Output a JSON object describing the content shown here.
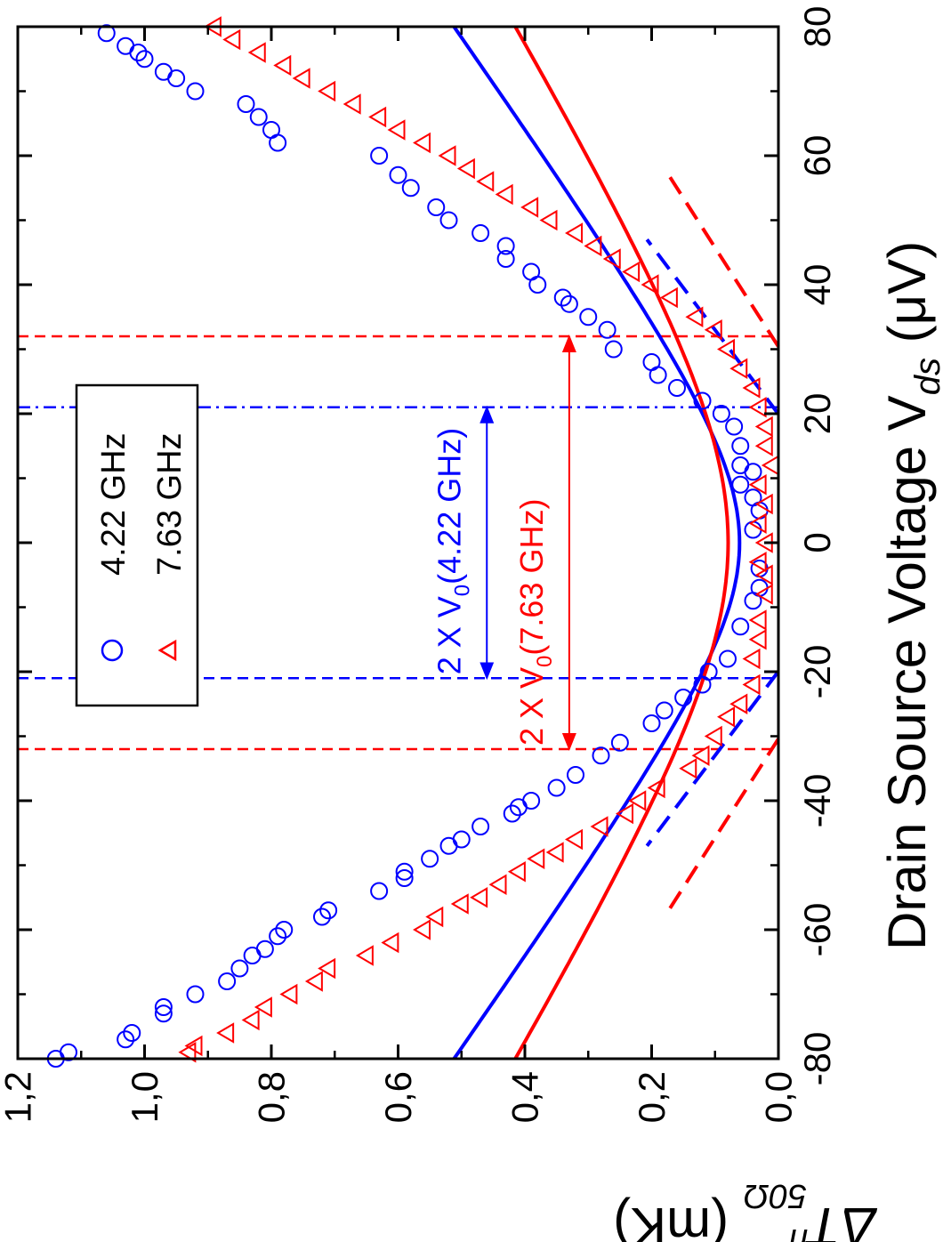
{
  "chart_data": {
    "type": "scatter",
    "orientation": "rotated-90-clockwise",
    "xlabel": {
      "prefix": "Drain Source Voltage V",
      "subscript": "ds",
      "suffix": " (μV)"
    },
    "ylabel": {
      "prefix": "ΔT",
      "superscript": "n",
      "subscript": "50Ω",
      "suffix": " (mK)"
    },
    "xlim": [
      -80,
      80
    ],
    "ylim": [
      0.0,
      1.2
    ],
    "xticks": [
      "-80",
      "-60",
      "-40",
      "-20",
      "0",
      "20",
      "40",
      "60",
      "80"
    ],
    "yticks": [
      "0,0",
      "0,2",
      "0,4",
      "0,6",
      "0,8",
      "1,0",
      "1,2"
    ],
    "grid": false,
    "legend": {
      "placement": "top-left",
      "entries": [
        {
          "label": "4.22 GHz",
          "marker": "circle",
          "color": "#0000ff"
        },
        {
          "label": "7.63 GHz",
          "marker": "triangle",
          "color": "#ff0000"
        }
      ]
    },
    "series": [
      {
        "name": "4.22 GHz",
        "color": "#0000ff",
        "marker": "circle",
        "V0": 21,
        "slope": 0.0073,
        "points": [
          [
            -80,
            1.14
          ],
          [
            -79,
            1.12
          ],
          [
            -77,
            1.03
          ],
          [
            -76,
            1.02
          ],
          [
            -73,
            0.97
          ],
          [
            -72,
            0.97
          ],
          [
            -70,
            0.92
          ],
          [
            -68,
            0.87
          ],
          [
            -66,
            0.85
          ],
          [
            -64,
            0.83
          ],
          [
            -63,
            0.81
          ],
          [
            -61,
            0.79
          ],
          [
            -60,
            0.78
          ],
          [
            -58,
            0.72
          ],
          [
            -57,
            0.71
          ],
          [
            -54,
            0.63
          ],
          [
            -52,
            0.59
          ],
          [
            -51,
            0.59
          ],
          [
            -49,
            0.55
          ],
          [
            -47,
            0.52
          ],
          [
            -46,
            0.5
          ],
          [
            -44,
            0.47
          ],
          [
            -42,
            0.42
          ],
          [
            -41,
            0.41
          ],
          [
            -40,
            0.39
          ],
          [
            -38,
            0.35
          ],
          [
            -36,
            0.32
          ],
          [
            -33,
            0.28
          ],
          [
            -31,
            0.25
          ],
          [
            -28,
            0.2
          ],
          [
            -26,
            0.18
          ],
          [
            -24,
            0.15
          ],
          [
            -22,
            0.12
          ],
          [
            -20,
            0.11
          ],
          [
            -18,
            0.08
          ],
          [
            -13,
            0.06
          ],
          [
            -9,
            0.04
          ],
          [
            -7,
            0.03
          ],
          [
            -4,
            0.03
          ],
          [
            2,
            0.04
          ],
          [
            5,
            0.03
          ],
          [
            7,
            0.04
          ],
          [
            9,
            0.06
          ],
          [
            11,
            0.04
          ],
          [
            12,
            0.06
          ],
          [
            15,
            0.06
          ],
          [
            18,
            0.07
          ],
          [
            20,
            0.09
          ],
          [
            22,
            0.12
          ],
          [
            24,
            0.16
          ],
          [
            26,
            0.19
          ],
          [
            28,
            0.2
          ],
          [
            30,
            0.26
          ],
          [
            33,
            0.27
          ],
          [
            35,
            0.3
          ],
          [
            37,
            0.33
          ],
          [
            38,
            0.34
          ],
          [
            40,
            0.38
          ],
          [
            42,
            0.39
          ],
          [
            44,
            0.43
          ],
          [
            46,
            0.43
          ],
          [
            48,
            0.47
          ],
          [
            50,
            0.52
          ],
          [
            52,
            0.54
          ],
          [
            55,
            0.58
          ],
          [
            57,
            0.6
          ],
          [
            60,
            0.63
          ],
          [
            62,
            0.79
          ],
          [
            64,
            0.8
          ],
          [
            66,
            0.82
          ],
          [
            68,
            0.84
          ],
          [
            70,
            0.92
          ],
          [
            72,
            0.95
          ],
          [
            73,
            0.97
          ],
          [
            75,
            1.0
          ],
          [
            76,
            1.01
          ],
          [
            77,
            1.03
          ],
          [
            79,
            1.06
          ]
        ]
      },
      {
        "name": "7.63 GHz",
        "color": "#ff0000",
        "marker": "triangle",
        "V0": 32,
        "slope": 0.0062,
        "points": [
          [
            -79,
            0.93
          ],
          [
            -78,
            0.92
          ],
          [
            -76,
            0.87
          ],
          [
            -74,
            0.83
          ],
          [
            -72,
            0.81
          ],
          [
            -70,
            0.77
          ],
          [
            -68,
            0.73
          ],
          [
            -66,
            0.71
          ],
          [
            -64,
            0.65
          ],
          [
            -62,
            0.61
          ],
          [
            -60,
            0.56
          ],
          [
            -58,
            0.54
          ],
          [
            -56,
            0.5
          ],
          [
            -55,
            0.47
          ],
          [
            -53,
            0.44
          ],
          [
            -51,
            0.41
          ],
          [
            -49,
            0.38
          ],
          [
            -48,
            0.35
          ],
          [
            -46,
            0.32
          ],
          [
            -44,
            0.28
          ],
          [
            -42,
            0.24
          ],
          [
            -40,
            0.22
          ],
          [
            -38,
            0.19
          ],
          [
            -35,
            0.14
          ],
          [
            -33,
            0.12
          ],
          [
            -30,
            0.1
          ],
          [
            -27,
            0.08
          ],
          [
            -25,
            0.06
          ],
          [
            -22,
            0.04
          ],
          [
            -18,
            0.04
          ],
          [
            -15,
            0.03
          ],
          [
            -12,
            0.03
          ],
          [
            -8,
            0.02
          ],
          [
            -5,
            0.02
          ],
          [
            -3,
            0.03
          ],
          [
            0,
            0.02
          ],
          [
            3,
            0.03
          ],
          [
            6,
            0.02
          ],
          [
            9,
            0.03
          ],
          [
            12,
            0.01
          ],
          [
            15,
            0.02
          ],
          [
            18,
            0.02
          ],
          [
            21,
            0.03
          ],
          [
            24,
            0.04
          ],
          [
            27,
            0.06
          ],
          [
            30,
            0.08
          ],
          [
            33,
            0.1
          ],
          [
            35,
            0.13
          ],
          [
            38,
            0.17
          ],
          [
            40,
            0.2
          ],
          [
            42,
            0.23
          ],
          [
            44,
            0.26
          ],
          [
            46,
            0.29
          ],
          [
            48,
            0.32
          ],
          [
            50,
            0.36
          ],
          [
            52,
            0.39
          ],
          [
            54,
            0.43
          ],
          [
            56,
            0.46
          ],
          [
            58,
            0.49
          ],
          [
            60,
            0.52
          ],
          [
            62,
            0.56
          ],
          [
            64,
            0.6
          ],
          [
            66,
            0.63
          ],
          [
            68,
            0.67
          ],
          [
            70,
            0.71
          ],
          [
            72,
            0.75
          ],
          [
            74,
            0.78
          ],
          [
            76,
            0.82
          ],
          [
            78,
            0.86
          ],
          [
            80,
            0.89
          ]
        ]
      }
    ],
    "annotations": [
      {
        "text_prefix": "2 X V",
        "sub": "0",
        "text_suffix": "(7.63 GHz)",
        "color": "#ff0000",
        "x_range": [
          -32,
          32
        ],
        "y": 0.33
      },
      {
        "text_prefix": "2 X V",
        "sub": "0",
        "text_suffix": "(4.22 GHz)",
        "color": "#0000ff",
        "x_range": [
          -21,
          21
        ],
        "y": 0.46
      }
    ],
    "reference_lines": [
      {
        "x": -32,
        "color": "#ff0000",
        "style": "dashed"
      },
      {
        "x": 32,
        "color": "#ff0000",
        "style": "dashed"
      },
      {
        "x": -21,
        "color": "#0000ff",
        "style": "dashed"
      },
      {
        "x": 21,
        "color": "#0000ff",
        "style": "dash-dot"
      }
    ]
  }
}
